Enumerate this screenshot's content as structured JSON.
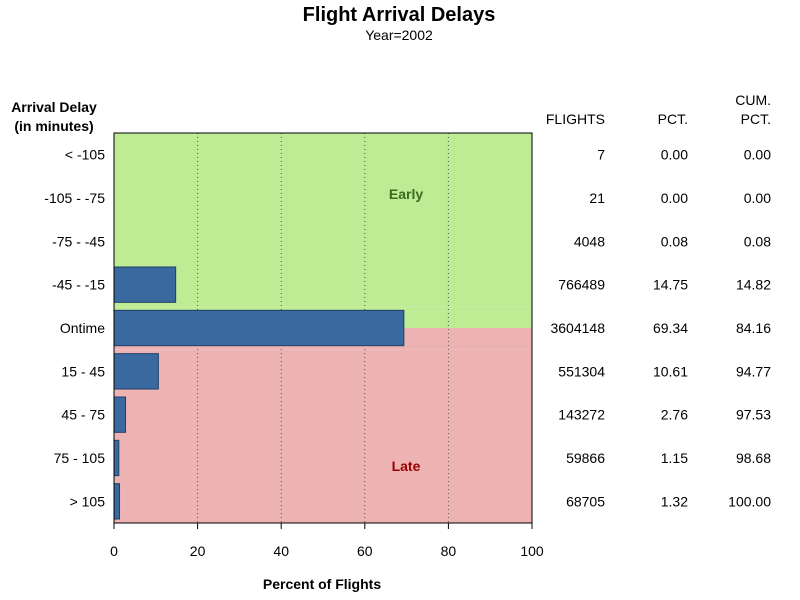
{
  "chart_data": {
    "type": "bar",
    "orientation": "horizontal",
    "title": "Flight Arrival Delays",
    "subtitle": "Year=2002",
    "ylabel_line1": "Arrival Delay",
    "ylabel_line2": "(in minutes)",
    "xlabel": "Percent of Flights",
    "xlim": [
      0,
      100
    ],
    "xticks": [
      "0",
      "20",
      "40",
      "60",
      "80",
      "100"
    ],
    "grid": "vertical dotted lines at 20, 40, 60, 80",
    "categories": [
      "< -105",
      "-105 - -75",
      "-75 - -45",
      "-45 - -15",
      "Ontime",
      "15 - 45",
      "45 - 75",
      "75 - 105",
      "> 105"
    ],
    "values": [
      0.0,
      0.0,
      0.08,
      14.75,
      69.34,
      10.61,
      2.76,
      1.15,
      1.32
    ],
    "zones": [
      {
        "label": "Early",
        "categories_from": 0,
        "categories_to": 3,
        "color": "#bdec94",
        "text_color": "#3a6b1e"
      },
      {
        "label": "Late",
        "categories_from": 5,
        "categories_to": 8,
        "color": "#edb3b3",
        "text_color": "#9a0000"
      }
    ],
    "ontime_split": {
      "early_color_until_percent": 100,
      "note_color_late": "#edb3b3"
    },
    "bar_color": "#3a699f",
    "table": {
      "headers": {
        "flights": "FLIGHTS",
        "pct": "PCT.",
        "cum_line1": "CUM.",
        "cum_line2": "PCT."
      },
      "rows": [
        {
          "flights": "7",
          "pct": "0.00",
          "cum": "0.00"
        },
        {
          "flights": "21",
          "pct": "0.00",
          "cum": "0.00"
        },
        {
          "flights": "4048",
          "pct": "0.08",
          "cum": "0.08"
        },
        {
          "flights": "766489",
          "pct": "14.75",
          "cum": "14.82"
        },
        {
          "flights": "3604148",
          "pct": "69.34",
          "cum": "84.16"
        },
        {
          "flights": "551304",
          "pct": "10.61",
          "cum": "94.77"
        },
        {
          "flights": "143272",
          "pct": "2.76",
          "cum": "97.53"
        },
        {
          "flights": "59866",
          "pct": "1.15",
          "cum": "98.68"
        },
        {
          "flights": "68705",
          "pct": "1.32",
          "cum": "100.00"
        }
      ]
    }
  }
}
